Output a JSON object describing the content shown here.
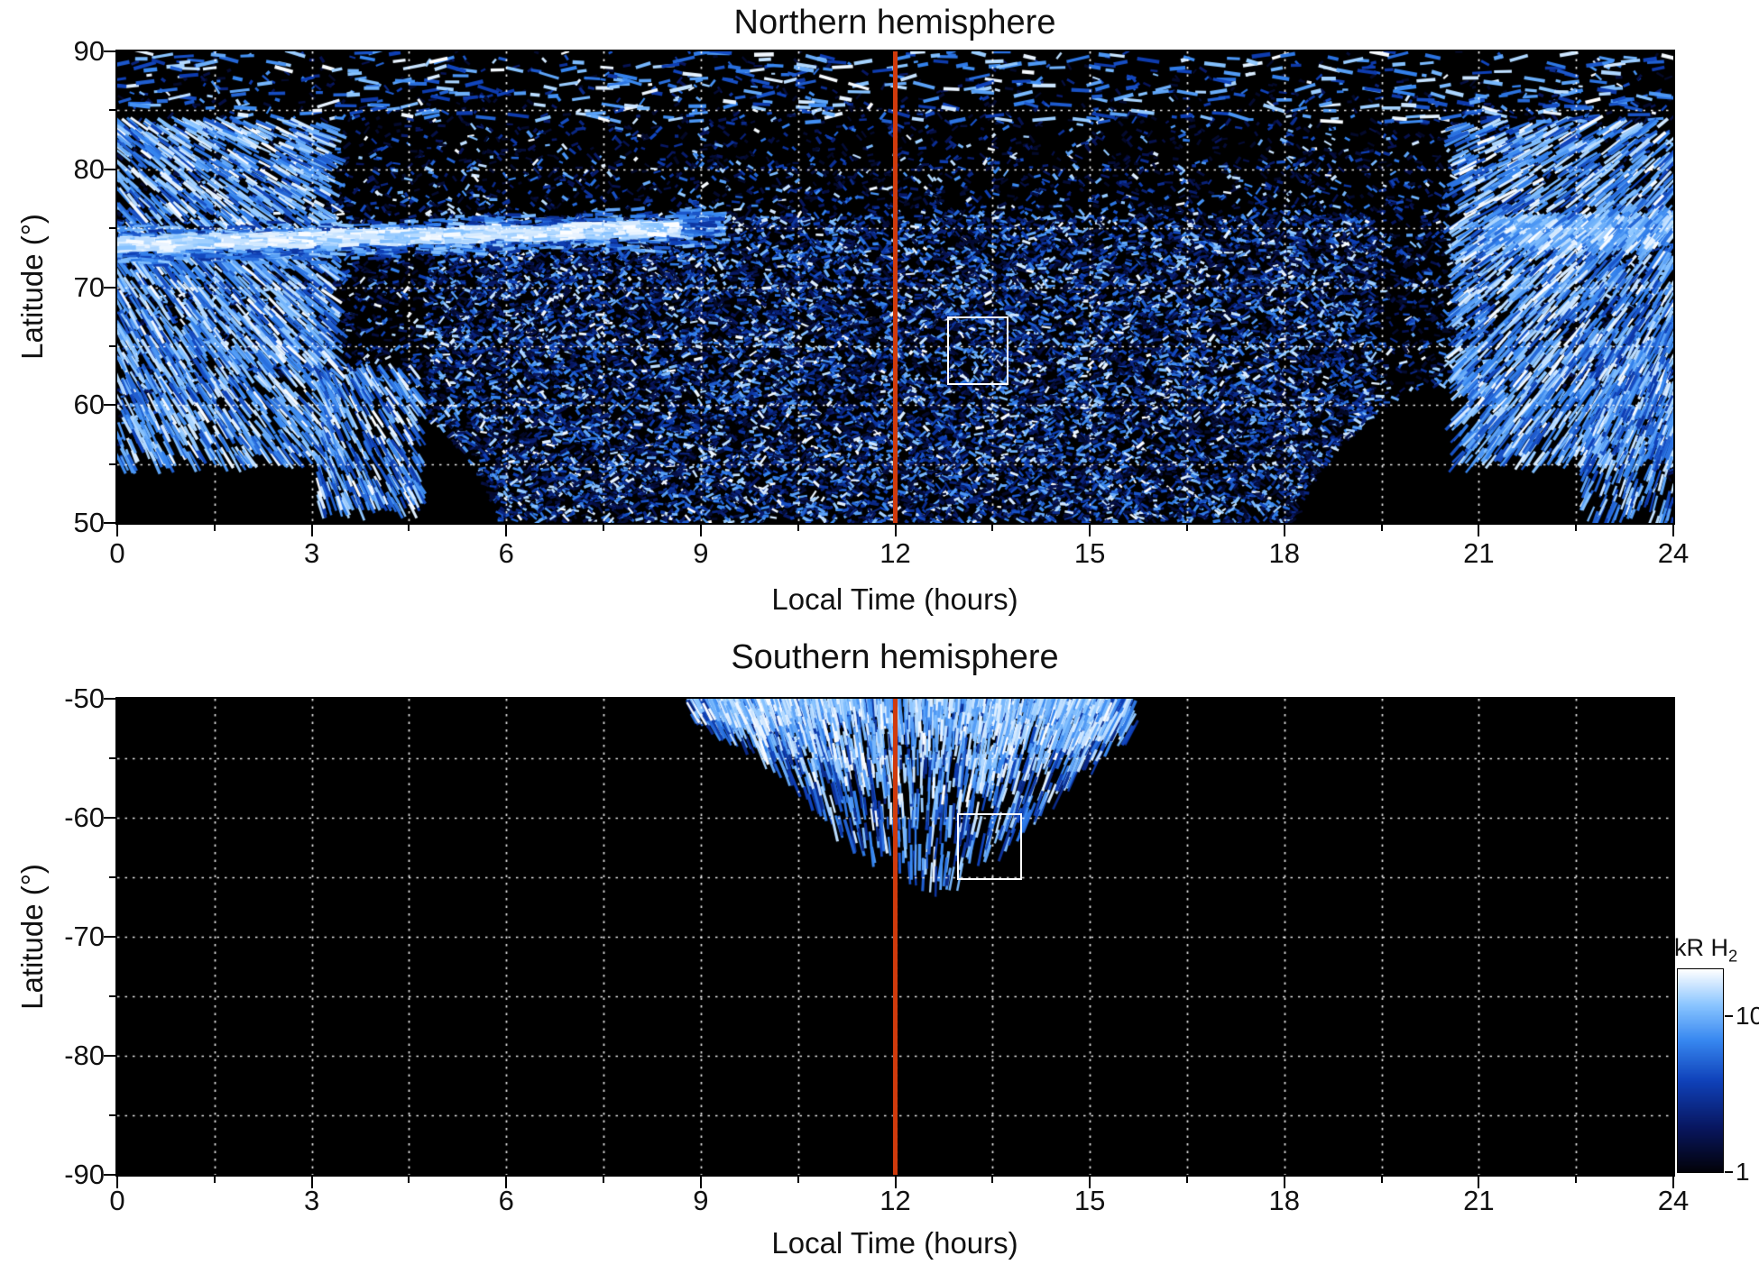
{
  "figure": {
    "description": "Two hemispheric maps of auroral H2 emission brightness (kR) versus local time and latitude, with a red line marking local noon and a white box marking a highlighted region in each hemisphere.",
    "colorbar": {
      "label_main": "kR H",
      "label_sub": "2",
      "tick_values": [
        10,
        1
      ],
      "tick_labels": [
        "10",
        "1"
      ],
      "range": [
        1,
        20
      ],
      "scale": "log"
    }
  },
  "colormap": [
    [
      0,
      "#020208"
    ],
    [
      0.22,
      "#08165f"
    ],
    [
      0.45,
      "#0f41b9"
    ],
    [
      0.65,
      "#3787f0"
    ],
    [
      0.82,
      "#87c3ff"
    ],
    [
      1,
      "#ffffff"
    ]
  ],
  "chart_data": [
    {
      "type": "heatmap",
      "title": "Northern hemisphere",
      "xlabel": "Local Time (hours)",
      "ylabel": "Latitude (°)",
      "x_range": [
        0,
        24
      ],
      "y_range": [
        90,
        50
      ],
      "xtick_values": [
        0,
        3,
        6,
        9,
        12,
        15,
        18,
        21,
        24
      ],
      "xtick_labels": [
        "0",
        "3",
        "6",
        "9",
        "12",
        "15",
        "18",
        "21",
        "24"
      ],
      "ytick_values": [
        90,
        80,
        70,
        60,
        50
      ],
      "ytick_labels": [
        "90",
        "80",
        "70",
        "60",
        "50"
      ],
      "grid": {
        "x_step": 1.5,
        "y_step": 5,
        "style": "dotted",
        "color": "rgba(255,255,255,0.92)"
      },
      "annotations": {
        "noon_line": {
          "x": 12,
          "color": "#cf3a0c"
        },
        "roi_box": {
          "x0": 12.8,
          "x1": 13.75,
          "y0": 61.7,
          "y1": 67.5,
          "color": "#ffffff"
        }
      },
      "seed": 101,
      "content_summary": "Dense speckled blue H2 emission covers 50-90 deg latitude at all local times; a bright white auroral arc sits near 73-76 deg latitude from 0 to about 9 LT; bright radial streaks appear near 0-3 LT and 21-24 LT; black data gaps lie below about 62 deg around 1-5 LT and 19-23 LT; sparse emission above about 82 deg; red line marks local noon; white box highlights ~12.8-13.8 LT, 62-67 deg.",
      "features": [
        {
          "kind": "speckle",
          "x": [
            0,
            24
          ],
          "y": [
            50,
            90
          ],
          "count": 18000,
          "len": [
            4,
            10
          ],
          "wid": [
            2,
            3.6
          ],
          "v": [
            0.08,
            1
          ],
          "vpow": 2.3,
          "angle_jitter": 60,
          "top_falloff": true,
          "voids": [
            [
              2.7,
              46,
              3.3,
              16.5
            ],
            [
              21.2,
              46,
              3.1,
              16
            ]
          ]
        },
        {
          "kind": "speckle",
          "x": [
            4.8,
            19.4
          ],
          "y": [
            50,
            76
          ],
          "count": 9000,
          "len": [
            4,
            11
          ],
          "wid": [
            2,
            3.6
          ],
          "v": [
            0.1,
            1
          ],
          "vpow": 1.7,
          "angle_jitter": 60,
          "voids": [
            [
              2.7,
              46,
              3.3,
              16.5
            ],
            [
              21.2,
              46,
              3.1,
              16
            ]
          ]
        },
        {
          "kind": "speckle",
          "x": [
            0,
            24
          ],
          "y": [
            84,
            90
          ],
          "count": 450,
          "len": [
            10,
            26
          ],
          "wid": [
            3,
            4.5
          ],
          "v": [
            0.4,
            1
          ],
          "vpow": 1.1,
          "angle_jitter": 18
        },
        {
          "kind": "streaks",
          "x": [
            0,
            3.4
          ],
          "y": [
            55,
            84
          ],
          "count": 1900,
          "len": [
            12,
            30
          ],
          "wid": [
            2.2,
            3.8
          ],
          "v": [
            0.45,
            1
          ],
          "vpow": 1.0,
          "focus": [
            -3,
            97
          ],
          "angle_jitter": 5,
          "bands": 34
        },
        {
          "kind": "streaks",
          "x": [
            3.1,
            4.7
          ],
          "y": [
            51,
            63
          ],
          "count": 420,
          "len": [
            10,
            26
          ],
          "wid": [
            2.2,
            3.4
          ],
          "v": [
            0.4,
            1
          ],
          "vpow": 1.2,
          "focus": [
            0.5,
            92
          ],
          "angle_jitter": 5,
          "bands": 12
        },
        {
          "kind": "streaks",
          "x": [
            20.6,
            24
          ],
          "y": [
            55,
            84
          ],
          "count": 1900,
          "len": [
            12,
            30
          ],
          "wid": [
            2.2,
            3.8
          ],
          "v": [
            0.45,
            1
          ],
          "vpow": 1.0,
          "focus": [
            27,
            97
          ],
          "angle_jitter": 5,
          "bands": 34
        },
        {
          "kind": "streaks",
          "x": [
            22.6,
            24
          ],
          "y": [
            50,
            66
          ],
          "count": 380,
          "len": [
            10,
            24
          ],
          "wid": [
            2.2,
            3.4
          ],
          "v": [
            0.4,
            1
          ],
          "vpow": 1.2,
          "focus": [
            26,
            92
          ],
          "angle_jitter": 5,
          "bands": 12
        },
        {
          "kind": "arc",
          "x": [
            0,
            9.3
          ],
          "y_center": 73.4,
          "y_slope": 0.18,
          "y_thick": 2.1,
          "count": 1500,
          "len": [
            8,
            20
          ],
          "wid": [
            2.5,
            4
          ],
          "v": [
            0.35,
            0.85
          ],
          "vpow": 1,
          "angle_jitter": 8
        },
        {
          "kind": "arc",
          "x": [
            0,
            8.6
          ],
          "y_center": 73.6,
          "y_slope": 0.16,
          "y_thick": 0.8,
          "count": 1700,
          "len": [
            10,
            24
          ],
          "wid": [
            3,
            5
          ],
          "v": [
            0.78,
            1
          ],
          "vpow": 0.8,
          "angle_jitter": 6
        },
        {
          "kind": "arc",
          "x": [
            21.2,
            24
          ],
          "y_center": 74.6,
          "y_slope": 0.1,
          "y_thick": 1.7,
          "count": 800,
          "len": [
            10,
            24
          ],
          "wid": [
            2.5,
            4.2
          ],
          "v": [
            0.55,
            1
          ],
          "vpow": 0.9,
          "focus": [
            27,
            97
          ],
          "angle_jitter": 6
        }
      ]
    },
    {
      "type": "heatmap",
      "title": "Southern hemisphere",
      "xlabel": "Local Time (hours)",
      "ylabel": "Latitude (°)",
      "x_range": [
        0,
        24
      ],
      "y_range": [
        -50,
        -90
      ],
      "xtick_values": [
        0,
        3,
        6,
        9,
        12,
        15,
        18,
        21,
        24
      ],
      "xtick_labels": [
        "0",
        "3",
        "6",
        "9",
        "12",
        "15",
        "18",
        "21",
        "24"
      ],
      "ytick_values": [
        -50,
        -60,
        -70,
        -80,
        -90
      ],
      "ytick_labels": [
        "-50",
        "-60",
        "-70",
        "-80",
        "-90"
      ],
      "grid": {
        "x_step": 1.5,
        "y_step": 5,
        "style": "dotted",
        "color": "rgba(255,255,255,0.92)"
      },
      "annotations": {
        "noon_line": {
          "x": 12,
          "color": "#cf3a0c"
        },
        "roi_box": {
          "x0": 12.95,
          "x1": 13.95,
          "y0": -65.2,
          "y1": -59.6,
          "color": "#ffffff"
        }
      },
      "seed": 202,
      "content_summary": "Emission confined to a fan of bright streaked data between about 8.9 and 15.6 LT, extending from -50 deg down to about -65 deg near 12-13 LT and shallower toward the fan edges; the rest of the map is black (no data); red line marks local noon; white box highlights ~13-14 LT, -60 to -65 deg.",
      "features": [
        {
          "kind": "fan",
          "x": [
            8.85,
            15.65
          ],
          "depth_center": 12.55,
          "depth_sigma": 2.45,
          "depth_max": 15.5,
          "bias": 1.45,
          "count": 1300,
          "len": [
            12,
            40
          ],
          "wid": [
            2.2,
            3.6
          ],
          "v": [
            0.3,
            1
          ],
          "vpow": 1.1,
          "focus": [
            12.3,
            -86
          ],
          "angle_jitter": 4,
          "bands": 88
        },
        {
          "kind": "fan",
          "x": [
            9.1,
            15.3
          ],
          "depth_center": 12.5,
          "depth_sigma": 2.5,
          "depth_max": 9,
          "bias": 1.8,
          "count": 900,
          "len": [
            10,
            30
          ],
          "wid": [
            2.2,
            3.4
          ],
          "v": [
            0.65,
            1
          ],
          "vpow": 0.9,
          "focus": [
            12.3,
            -86
          ],
          "angle_jitter": 4,
          "bands": 88
        }
      ]
    }
  ]
}
